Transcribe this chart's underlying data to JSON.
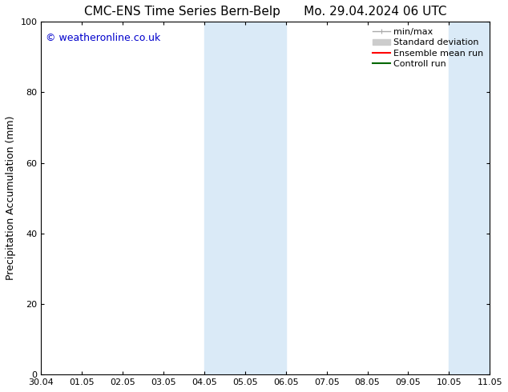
{
  "title": "CMC-ENS Time Series Bern-Belp",
  "title2": "Mo. 29.04.2024 06 UTC",
  "ylabel": "Precipitation Accumulation (mm)",
  "watermark": "© weatheronline.co.uk",
  "watermark_color": "#0000cc",
  "background_color": "#ffffff",
  "plot_bg_color": "#ffffff",
  "ylim": [
    0,
    100
  ],
  "xlim_start": 0,
  "xlim_end": 11,
  "xtick_positions": [
    0,
    1,
    2,
    3,
    4,
    5,
    6,
    7,
    8,
    9,
    10,
    11
  ],
  "xtick_labels": [
    "30.04",
    "01.05",
    "02.05",
    "03.05",
    "04.05",
    "05.05",
    "06.05",
    "07.05",
    "08.05",
    "09.05",
    "10.05",
    "11.05"
  ],
  "shaded_bands": [
    {
      "x_start": 4.0,
      "x_end": 4.5,
      "color": "#daeaf7"
    },
    {
      "x_start": 4.5,
      "x_end": 5.5,
      "color": "#daeaf7"
    },
    {
      "x_start": 5.5,
      "x_end": 6.0,
      "color": "#daeaf7"
    },
    {
      "x_start": 10.0,
      "x_end": 10.5,
      "color": "#daeaf7"
    },
    {
      "x_start": 10.5,
      "x_end": 11.0,
      "color": "#daeaf7"
    }
  ],
  "legend_entries": [
    {
      "label": "min/max",
      "color": "#aaaaaa",
      "lw": 1.0
    },
    {
      "label": "Standard deviation",
      "color": "#cccccc",
      "lw": 6
    },
    {
      "label": "Ensemble mean run",
      "color": "#ff0000",
      "lw": 1.5
    },
    {
      "label": "Controll run",
      "color": "#006600",
      "lw": 1.5
    }
  ],
  "yticks": [
    0,
    20,
    40,
    60,
    80,
    100
  ],
  "font_family": "DejaVu Sans",
  "title_fontsize": 11,
  "tick_fontsize": 8,
  "legend_fontsize": 8,
  "ylabel_fontsize": 9,
  "watermark_fontsize": 9
}
